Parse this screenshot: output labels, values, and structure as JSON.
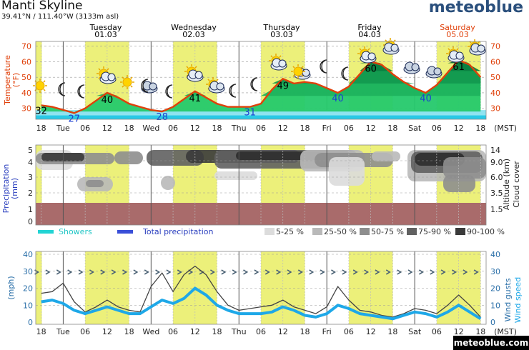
{
  "header": {
    "title": "Manti Skyline",
    "coords": "39.41°N / 111.40°W (3133m asl)",
    "brand": "meteoblue",
    "footer_brand": "meteoblue.com"
  },
  "days": [
    {
      "name": "Tuesday",
      "date": "01.03",
      "x": 148,
      "color": "#000000"
    },
    {
      "name": "Wednesday",
      "date": "02.03",
      "x": 271,
      "color": "#000000"
    },
    {
      "name": "Thursday",
      "date": "03.03",
      "x": 394,
      "color": "#000000"
    },
    {
      "name": "Friday",
      "date": "04.03",
      "x": 517,
      "color": "#000000"
    },
    {
      "name": "Saturday",
      "date": "05.03",
      "x": 640,
      "color": "#e0400a"
    }
  ],
  "time_axis": {
    "labels": [
      "18",
      "Tue",
      "06",
      "12",
      "18",
      "Wed",
      "06",
      "12",
      "18",
      "Thu",
      "06",
      "12",
      "18",
      "Fri",
      "06",
      "12",
      "18",
      "Sat",
      "06",
      "12",
      "18"
    ],
    "unit": "(MST)"
  },
  "colors": {
    "daylight": "#ecf07a",
    "temp_line": "#e0400a",
    "showers": "#22d4d4",
    "total_precip": "#3a4fd8",
    "wind_speed": "#1ea8e8",
    "wind_gusts": "#444444",
    "brand": "#2a4f7c",
    "mountain": "#a96b6b"
  },
  "temperature_chart": {
    "ylabel_left": "Temperature",
    "ylabel_sub": "(°F)",
    "yticks": [
      "30",
      "40",
      "50",
      "60",
      "70"
    ],
    "annotations": [
      {
        "text": "32",
        "hour": 0
      },
      {
        "text": "27",
        "hour": 9
      },
      {
        "text": "40",
        "hour": 18
      },
      {
        "text": "28",
        "hour": 33
      },
      {
        "text": "41",
        "hour": 42
      },
      {
        "text": "31",
        "hour": 57
      },
      {
        "text": "49",
        "hour": 66
      },
      {
        "text": "40",
        "hour": 81
      },
      {
        "text": "60",
        "hour": 90
      },
      {
        "text": "40",
        "hour": 105
      },
      {
        "text": "61",
        "hour": 114
      }
    ]
  },
  "precip_chart": {
    "ylabel": "Precipitation",
    "ylabel_sub": "(mm)",
    "left_ticks": [
      "0",
      "1",
      "2",
      "3",
      "4",
      "5"
    ],
    "right_ticks": [
      "1.5",
      "3.5",
      "6.0",
      "9.0",
      "14"
    ],
    "right_label_1": "Altitude (km)",
    "right_label_2": "Cloud cover",
    "legend": {
      "showers": "Showers",
      "total": "Total precipitation",
      "c1": "5-25 %",
      "c2": "25-50 %",
      "c3": "50-75 %",
      "c4": "75-90 %",
      "c5": "90-100 %"
    }
  },
  "wind_chart": {
    "ylabel": "(mph)",
    "yticks": [
      "0",
      "10",
      "20",
      "30",
      "40"
    ],
    "right_label_1": "Wind gusts",
    "right_label_2": "Wind speed"
  },
  "chart_data": [
    {
      "type": "area",
      "title": "",
      "x_unit": "hours from Mon 28.02 18:00 MST",
      "ylabel": "Temperature (°F)",
      "ylim": [
        23,
        73
      ],
      "series": [
        {
          "name": "",
          "x": [
            0,
            3,
            6,
            9,
            12,
            15,
            18,
            21,
            24,
            27,
            30,
            33,
            36,
            39,
            42,
            45,
            48,
            51,
            54,
            57,
            60,
            63,
            66,
            69,
            72,
            75,
            78,
            81,
            84,
            87,
            90,
            93,
            96,
            99,
            102,
            105,
            108,
            111,
            114,
            117,
            120
          ],
          "values": [
            32,
            31,
            29,
            27,
            30,
            35,
            40,
            37,
            33,
            31,
            29,
            28,
            31,
            36,
            41,
            37,
            33,
            31,
            31,
            31,
            33,
            42,
            49,
            46,
            47,
            46,
            43,
            40,
            44,
            52,
            60,
            58,
            52,
            47,
            43,
            40,
            45,
            53,
            61,
            58,
            50
          ]
        }
      ]
    },
    {
      "type": "heatmap",
      "title": "",
      "ylabel": "Altitude (km)",
      "ylim": [
        1.5,
        14
      ],
      "description_levels": [
        "5-25 %",
        "25-50 %",
        "50-75 %",
        "75-90 %",
        "90-100 %"
      ]
    },
    {
      "type": "line",
      "title": "",
      "ylabel": "(mph)",
      "ylim": [
        0,
        40
      ],
      "series": [
        {
          "name": "Wind gusts",
          "x": [
            0,
            3,
            6,
            9,
            12,
            15,
            18,
            21,
            24,
            27,
            30,
            33,
            36,
            39,
            42,
            45,
            48,
            51,
            54,
            57,
            60,
            63,
            66,
            69,
            72,
            75,
            78,
            81,
            84,
            87,
            90,
            93,
            96,
            99,
            102,
            105,
            108,
            111,
            114,
            117,
            120
          ],
          "values": [
            17,
            18,
            23,
            12,
            6,
            9,
            13,
            9,
            7,
            6,
            21,
            29,
            18,
            28,
            33,
            28,
            18,
            10,
            7,
            8,
            9,
            10,
            13,
            9,
            7,
            5,
            9,
            21,
            13,
            7,
            6,
            4,
            3,
            5,
            8,
            7,
            5,
            10,
            16,
            10,
            3
          ]
        },
        {
          "name": "Wind speed",
          "x": [
            0,
            3,
            6,
            9,
            12,
            15,
            18,
            21,
            24,
            27,
            30,
            33,
            36,
            39,
            42,
            45,
            48,
            51,
            54,
            57,
            60,
            63,
            66,
            69,
            72,
            75,
            78,
            81,
            84,
            87,
            90,
            93,
            96,
            99,
            102,
            105,
            108,
            111,
            114,
            117,
            120
          ],
          "values": [
            12,
            13,
            11,
            7,
            5,
            7,
            9,
            7,
            5,
            5,
            9,
            13,
            11,
            14,
            20,
            16,
            10,
            7,
            5,
            5,
            5,
            6,
            9,
            7,
            4,
            3,
            5,
            10,
            8,
            5,
            4,
            3,
            2,
            4,
            6,
            5,
            3,
            6,
            10,
            6,
            2
          ]
        }
      ]
    }
  ]
}
